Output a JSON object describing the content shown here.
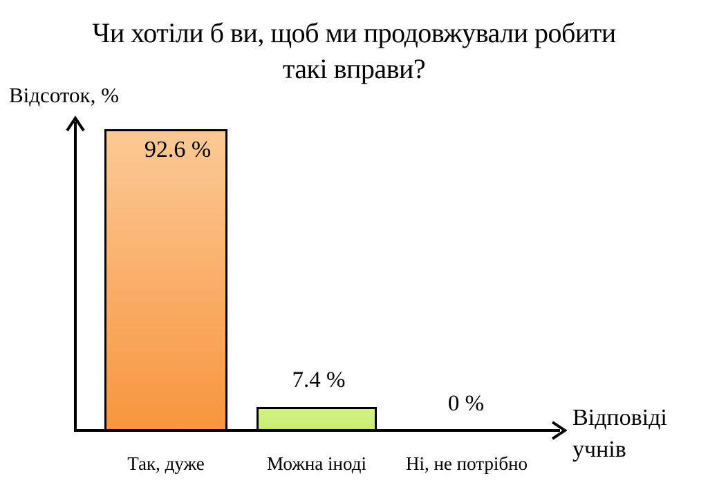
{
  "title_lines": [
    "Чи хотіли б ви, щоб ми продовжували робити",
    "такі вправи?"
  ],
  "xlabel_lines": [
    "Відповіді",
    "учнів"
  ],
  "chart_data": {
    "type": "bar",
    "title": "Чи хотіли б ви, щоб ми продовжували робити такі вправи?",
    "categories": [
      "Так, дуже",
      "Можна іноді",
      "Ні, не потрібно"
    ],
    "values": [
      92.6,
      7.4,
      0
    ],
    "value_labels": [
      "92.6 %",
      "7.4 %",
      "0 %"
    ],
    "ylabel": "Відсоток, %",
    "xlabel": "Відповіді учнів",
    "ylim": [
      0,
      100
    ],
    "grid": false,
    "legend": "none",
    "axis_color": "#000000",
    "text_color": "#000000",
    "background": "#FFFFFF",
    "bar_colors": [
      {
        "name": "orange-gradient",
        "top": "#FBC995",
        "bottom": "#F8953E",
        "border": "#000000"
      },
      {
        "name": "green-gradient",
        "top": "#D3F287",
        "bottom": "#C7ED6E",
        "border": "#000000"
      }
    ]
  }
}
